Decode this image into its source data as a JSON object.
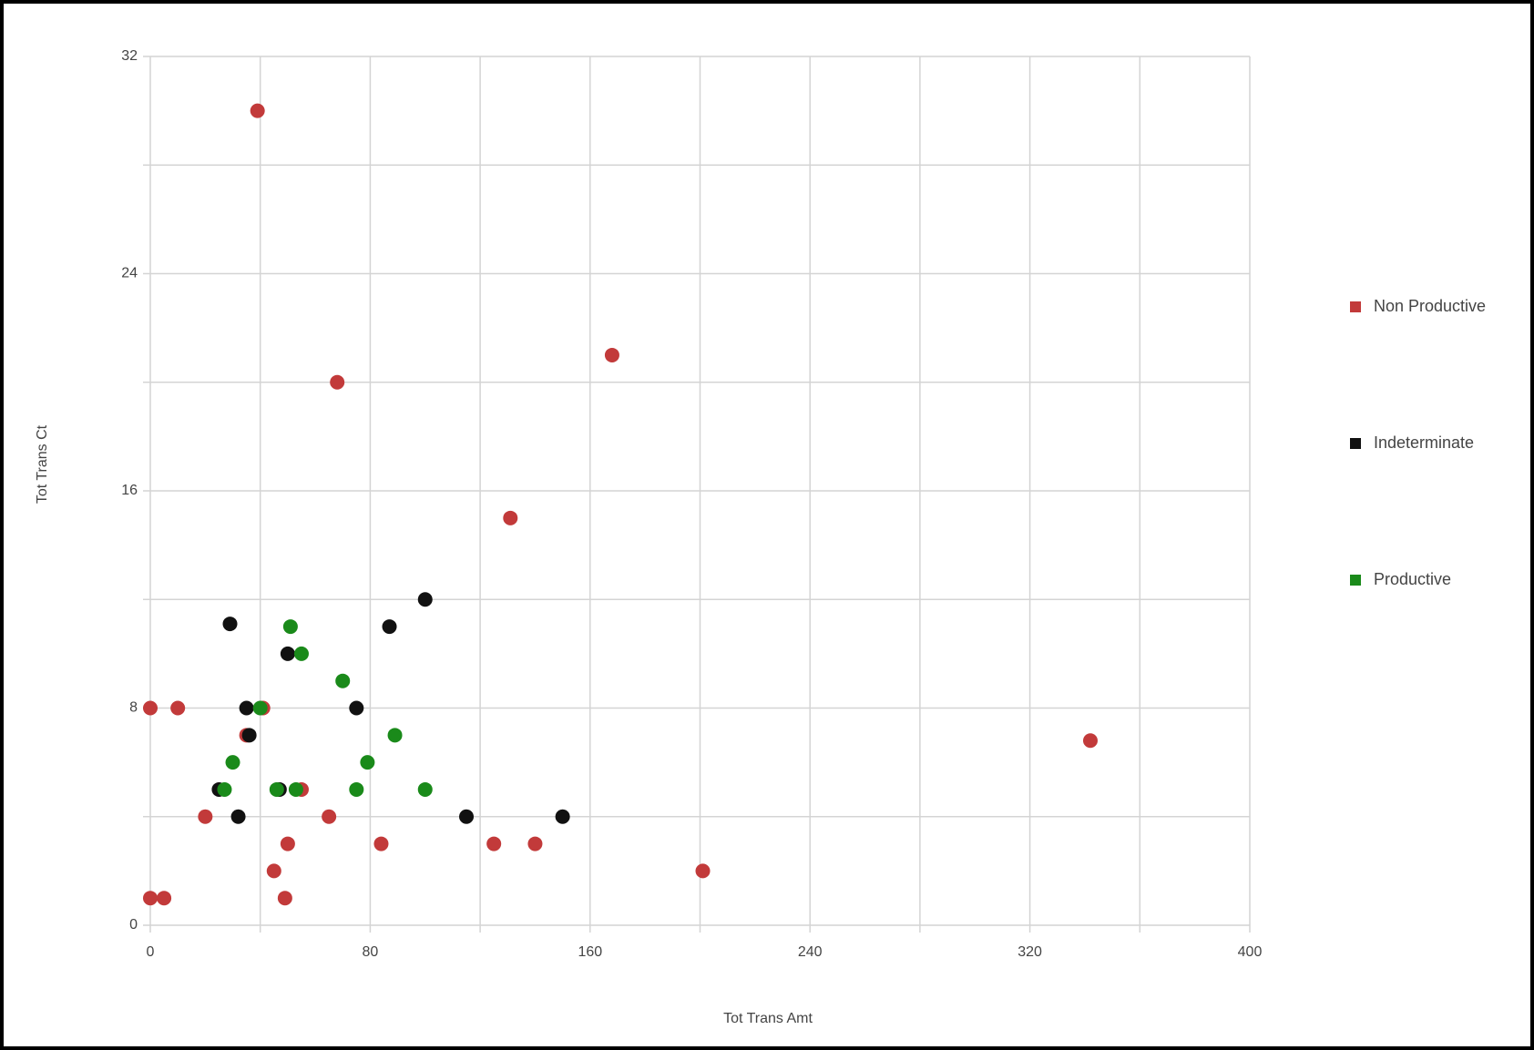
{
  "chart_data": {
    "type": "scatter",
    "x_label": "Tot Trans Amt",
    "y_label": "Tot Trans Ct",
    "xlim": [
      0,
      400
    ],
    "xticks": [
      0,
      80,
      160,
      240,
      320,
      400
    ],
    "x_minor_ticks": [
      40,
      120,
      200,
      280,
      360
    ],
    "ylim": [
      0,
      32
    ],
    "yticks": [
      0,
      8,
      16,
      24,
      32
    ],
    "y_minor_ticks": [
      4,
      12,
      20,
      28
    ],
    "grid": true,
    "legend": "right",
    "series": [
      {
        "name": "Non Productive",
        "color": "#c23a3a",
        "x": [
          39,
          168,
          68,
          131,
          342,
          0,
          10,
          41,
          35,
          20,
          55,
          65,
          50,
          84,
          125,
          140,
          45,
          201,
          0,
          5,
          49
        ],
        "values": [
          30,
          21,
          20,
          15,
          6.8,
          8,
          8,
          8,
          7,
          4,
          5,
          4,
          3,
          3,
          3,
          3,
          2,
          2,
          1,
          1,
          1
        ]
      },
      {
        "name": "Indeterminate",
        "color": "#111111",
        "x": [
          29,
          50,
          100,
          87,
          35,
          75,
          36,
          25,
          47,
          32,
          115,
          150
        ],
        "values": [
          11.1,
          10,
          12,
          11,
          8,
          8,
          7,
          5,
          5,
          4,
          4,
          4
        ]
      },
      {
        "name": "Productive",
        "color": "#1a8a1a",
        "x": [
          51,
          55,
          70,
          40,
          89,
          30,
          79,
          27,
          46,
          53,
          75,
          100
        ],
        "values": [
          11,
          10,
          9,
          8,
          7,
          6,
          6,
          5,
          5,
          5,
          5,
          5
        ]
      }
    ]
  }
}
